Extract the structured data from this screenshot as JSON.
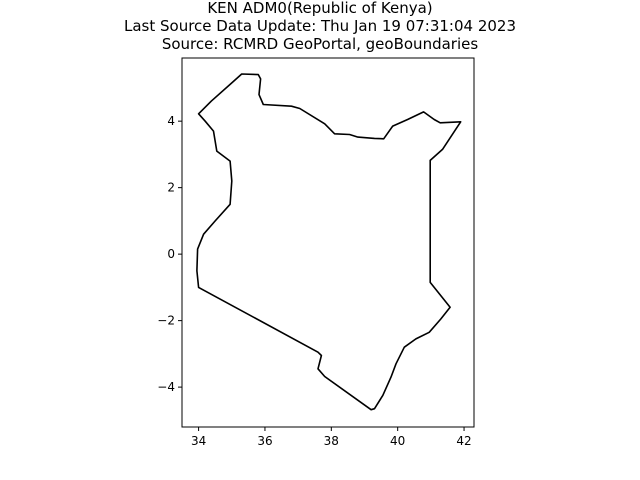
{
  "title": {
    "line1": "KEN ADM0(Republic of Kenya)",
    "line2": "Last Source Data Update: Thu Jan 19 07:31:04 2023",
    "line3": "Source: RCMRD GeoPortal, geoBoundaries"
  },
  "chart_data": {
    "type": "map-outline",
    "title": "KEN ADM0(Republic of Kenya)",
    "subtitle": [
      "Last Source Data Update: Thu Jan 19 07:31:04 2023",
      "Source: RCMRD GeoPortal, geoBoundaries"
    ],
    "xlim": [
      33.5,
      42.3
    ],
    "ylim": [
      -5.2,
      5.9
    ],
    "x_ticks": [
      34,
      36,
      38,
      40,
      42
    ],
    "y_ticks": [
      -4,
      -2,
      0,
      2,
      4
    ],
    "grid": false,
    "line_color": "#000000",
    "boundary": [
      [
        34.0,
        4.22
      ],
      [
        34.38,
        4.6
      ],
      [
        35.0,
        5.15
      ],
      [
        35.3,
        5.42
      ],
      [
        35.8,
        5.4
      ],
      [
        35.87,
        5.27
      ],
      [
        35.82,
        4.8
      ],
      [
        35.95,
        4.5
      ],
      [
        36.8,
        4.45
      ],
      [
        37.05,
        4.38
      ],
      [
        37.8,
        3.92
      ],
      [
        38.1,
        3.62
      ],
      [
        38.55,
        3.6
      ],
      [
        38.8,
        3.52
      ],
      [
        39.3,
        3.48
      ],
      [
        39.58,
        3.47
      ],
      [
        39.85,
        3.85
      ],
      [
        40.3,
        4.05
      ],
      [
        40.78,
        4.28
      ],
      [
        41.1,
        4.05
      ],
      [
        41.28,
        3.95
      ],
      [
        41.9,
        3.98
      ],
      [
        41.35,
        3.15
      ],
      [
        40.98,
        2.82
      ],
      [
        40.98,
        -0.85
      ],
      [
        41.58,
        -1.6
      ],
      [
        41.3,
        -1.95
      ],
      [
        40.95,
        -2.35
      ],
      [
        40.55,
        -2.55
      ],
      [
        40.2,
        -2.8
      ],
      [
        39.95,
        -3.3
      ],
      [
        39.8,
        -3.7
      ],
      [
        39.55,
        -4.25
      ],
      [
        39.3,
        -4.65
      ],
      [
        39.2,
        -4.68
      ],
      [
        37.8,
        -3.68
      ],
      [
        37.6,
        -3.45
      ],
      [
        37.7,
        -3.05
      ],
      [
        37.6,
        -2.95
      ],
      [
        34.0,
        -1.0
      ],
      [
        33.95,
        -0.5
      ],
      [
        33.97,
        0.15
      ],
      [
        34.15,
        0.6
      ],
      [
        34.5,
        1.0
      ],
      [
        34.95,
        1.5
      ],
      [
        35.0,
        2.2
      ],
      [
        34.95,
        2.8
      ],
      [
        34.55,
        3.1
      ],
      [
        34.45,
        3.7
      ],
      [
        34.2,
        4.0
      ],
      [
        34.0,
        4.22
      ]
    ]
  }
}
